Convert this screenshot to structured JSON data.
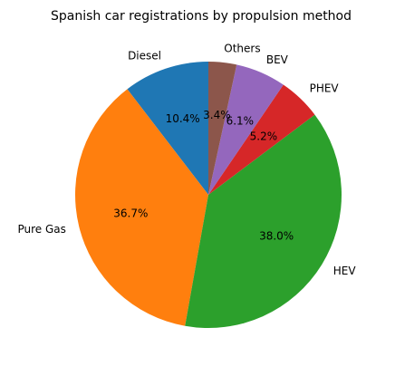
{
  "chart_data": {
    "type": "pie",
    "title": "Spanish car registrations by propulsion method",
    "categories": [
      "Diesel",
      "Pure Gas",
      "HEV",
      "PHEV",
      "BEV",
      "Others"
    ],
    "values": [
      10.4,
      36.7,
      38.0,
      5.2,
      6.1,
      3.4
    ],
    "value_labels": [
      "10.4%",
      "36.7%",
      "38.0%",
      "5.2%",
      "6.1%",
      "3.4%"
    ],
    "colors": [
      "#1f77b4",
      "#ff7f0e",
      "#2ca02c",
      "#d62728",
      "#9467bd",
      "#8c564b"
    ],
    "start_angle_deg": 90,
    "direction": "counterclockwise",
    "legend": "none"
  }
}
